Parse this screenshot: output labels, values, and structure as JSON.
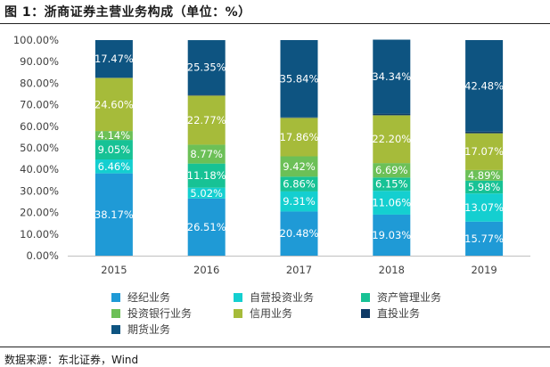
{
  "header": {
    "title": "图 1：浙商证券主营业务构成（单位：%）"
  },
  "footer": {
    "source": "数据来源：东北证券，Wind"
  },
  "chart_data": {
    "type": "bar",
    "stacked": true,
    "categories": [
      "2015",
      "2016",
      "2017",
      "2018",
      "2019"
    ],
    "ylim": [
      0,
      100
    ],
    "yticks": [
      "0.00%",
      "10.00%",
      "20.00%",
      "30.00%",
      "40.00%",
      "50.00%",
      "60.00%",
      "70.00%",
      "80.00%",
      "90.00%",
      "100.00%"
    ],
    "series": [
      {
        "name": "经纪业务",
        "color": "#1f9ad6",
        "values": [
          38.17,
          26.51,
          20.48,
          19.03,
          15.77
        ]
      },
      {
        "name": "自营投资业务",
        "color": "#14cfd0",
        "values": [
          6.46,
          5.02,
          9.31,
          11.06,
          13.07
        ]
      },
      {
        "name": "资产管理业务",
        "color": "#17c295",
        "values": [
          9.05,
          11.18,
          6.86,
          6.15,
          5.98
        ]
      },
      {
        "name": "投资银行业务",
        "color": "#6cc057",
        "values": [
          4.14,
          8.77,
          9.42,
          6.69,
          4.89
        ]
      },
      {
        "name": "信用业务",
        "color": "#a6bb3a",
        "values": [
          24.6,
          22.77,
          17.86,
          22.2,
          17.07
        ]
      },
      {
        "name": "直投业务",
        "color": "#0e3a66",
        "values": [
          0.11,
          0.38,
          0.23,
          0.73,
          0.74
        ]
      },
      {
        "name": "期货业务",
        "color": "#0e5481",
        "values": [
          17.47,
          25.35,
          35.84,
          34.34,
          42.48
        ]
      }
    ],
    "labels": [
      [
        "38.17%",
        "26.51%",
        "20.48%",
        "19.03%",
        "15.77%"
      ],
      [
        "6.46%",
        "5.02%",
        "9.31%",
        "11.06%",
        "13.07%"
      ],
      [
        "9.05%",
        "11.18%",
        "6.86%",
        "6.15%",
        "5.98%"
      ],
      [
        "4.14%",
        "8.77%",
        "9.42%",
        "6.69%",
        "4.89%"
      ],
      [
        "24.60%",
        "22.77%",
        "17.86%",
        "22.20%",
        "17.07%"
      ],
      [
        "",
        "",
        "",
        "",
        ""
      ],
      [
        "17.47%",
        "25.35%",
        "35.84%",
        "34.34%",
        "42.48%"
      ]
    ],
    "legend_position": "bottom",
    "grid": false
  }
}
